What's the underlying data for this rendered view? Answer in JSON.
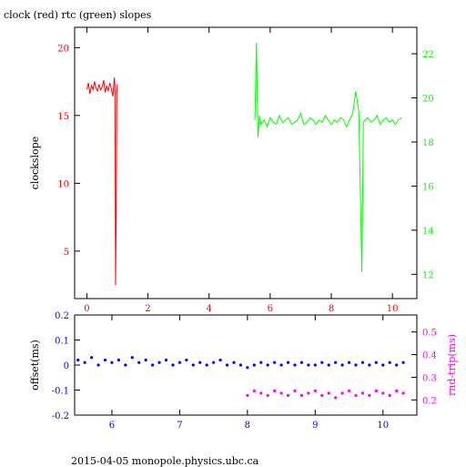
{
  "title": "clock (red) rtc (green) slopes",
  "footer": "2015-04-05  monopole.physics.ubc.ca",
  "colors": {
    "red": "#ff0000",
    "green": "#00ff00",
    "blue": "#0000ff",
    "magenta": "#ff00ff",
    "axis": "#000000"
  },
  "chart_data": [
    {
      "type": "line",
      "ylabel": "clockslope",
      "y2label": "",
      "xlim": [
        -0.4,
        10.8
      ],
      "ylim": [
        1.5,
        21.5
      ],
      "y2lim": [
        10.9,
        23.2
      ],
      "xticks": [
        0,
        2,
        4,
        6,
        8,
        10
      ],
      "yticks": [
        5,
        10,
        15,
        20
      ],
      "y2ticks": [
        12,
        14,
        16,
        18,
        20,
        22
      ],
      "series": [
        {
          "axis": "left",
          "color": "red",
          "x": [
            0.0,
            0.05,
            0.1,
            0.15,
            0.2,
            0.25,
            0.3,
            0.35,
            0.4,
            0.45,
            0.5,
            0.55,
            0.6,
            0.65,
            0.7,
            0.75,
            0.8,
            0.85,
            0.9,
            0.92,
            0.94,
            0.96,
            0.98,
            1.0
          ],
          "y": [
            16.9,
            17.4,
            16.6,
            17.2,
            16.9,
            17.5,
            17.0,
            16.8,
            17.3,
            16.9,
            17.1,
            17.6,
            16.7,
            17.2,
            16.8,
            17.4,
            17.0,
            16.4,
            17.8,
            17.2,
            2.5,
            7.5,
            16.8,
            17.3
          ]
        },
        {
          "axis": "right",
          "color": "green",
          "x": [
            5.5,
            5.55,
            5.6,
            5.65,
            5.7,
            5.8,
            5.9,
            6.0,
            6.1,
            6.2,
            6.3,
            6.4,
            6.5,
            6.6,
            6.7,
            6.8,
            6.9,
            7.0,
            7.1,
            7.2,
            7.3,
            7.4,
            7.5,
            7.6,
            7.7,
            7.8,
            7.9,
            8.0,
            8.1,
            8.2,
            8.3,
            8.4,
            8.5,
            8.6,
            8.7,
            8.8,
            8.9,
            9.0,
            9.05,
            9.1,
            9.2,
            9.3,
            9.4,
            9.5,
            9.6,
            9.7,
            9.8,
            9.9,
            10.0,
            10.1,
            10.2,
            10.3
          ],
          "y": [
            19.0,
            22.5,
            18.2,
            19.2,
            18.8,
            19.0,
            18.7,
            19.1,
            18.9,
            18.8,
            19.2,
            18.9,
            19.0,
            19.1,
            18.8,
            18.9,
            19.0,
            19.3,
            18.8,
            18.9,
            19.1,
            19.0,
            18.8,
            19.0,
            18.9,
            19.2,
            19.0,
            18.8,
            19.0,
            18.9,
            19.1,
            19.0,
            18.7,
            19.0,
            19.3,
            20.3,
            19.4,
            12.1,
            18.9,
            19.0,
            19.1,
            18.9,
            19.0,
            19.2,
            18.8,
            19.0,
            19.1,
            18.9,
            19.0,
            18.8,
            19.0,
            19.1
          ]
        }
      ]
    },
    {
      "type": "scatter",
      "ylabel": "offset(ms)",
      "y2label": "rnd-trip(ms)",
      "xlim": [
        5.45,
        10.5
      ],
      "ylim": [
        -0.2,
        0.2
      ],
      "y2lim": [
        0.133,
        0.575
      ],
      "xticks": [
        6,
        7,
        8,
        9,
        10
      ],
      "yticks": [
        -0.2,
        -0.1,
        0,
        0.1,
        0.2
      ],
      "y2ticks": [
        0.2,
        0.3,
        0.4,
        0.5
      ],
      "series": [
        {
          "axis": "left",
          "color": "blue",
          "x": [
            5.5,
            5.6,
            5.7,
            5.8,
            5.9,
            6.0,
            6.1,
            6.2,
            6.3,
            6.4,
            6.5,
            6.6,
            6.7,
            6.8,
            6.9,
            7.0,
            7.1,
            7.2,
            7.3,
            7.4,
            7.5,
            7.6,
            7.7,
            7.8,
            7.9,
            8.0,
            8.1,
            8.2,
            8.3,
            8.4,
            8.5,
            8.6,
            8.7,
            8.8,
            8.9,
            9.0,
            9.1,
            9.2,
            9.3,
            9.4,
            9.5,
            9.6,
            9.7,
            9.8,
            9.9,
            10.0,
            10.1,
            10.2,
            10.3
          ],
          "y": [
            0.02,
            0.01,
            0.03,
            0.0,
            0.02,
            0.01,
            0.02,
            0.0,
            0.03,
            0.01,
            0.02,
            0.0,
            0.01,
            0.02,
            0.0,
            0.01,
            0.02,
            0.0,
            0.01,
            0.0,
            0.01,
            0.02,
            0.0,
            0.01,
            0.0,
            -0.01,
            0.0,
            0.01,
            0.0,
            0.01,
            0.0,
            0.01,
            0.0,
            0.01,
            0.0,
            0.0,
            0.01,
            0.0,
            0.01,
            0.0,
            0.01,
            0.0,
            0.01,
            0.0,
            0.01,
            0.0,
            0.01,
            0.0,
            0.01
          ]
        },
        {
          "axis": "right",
          "color": "magenta",
          "x": [
            8.0,
            8.1,
            8.2,
            8.3,
            8.4,
            8.5,
            8.6,
            8.7,
            8.8,
            8.9,
            9.0,
            9.1,
            9.2,
            9.3,
            9.4,
            9.5,
            9.6,
            9.7,
            9.8,
            9.9,
            10.0,
            10.1,
            10.2,
            10.3
          ],
          "y": [
            0.22,
            0.24,
            0.23,
            0.22,
            0.24,
            0.23,
            0.22,
            0.24,
            0.22,
            0.23,
            0.24,
            0.22,
            0.23,
            0.21,
            0.23,
            0.24,
            0.22,
            0.23,
            0.22,
            0.24,
            0.23,
            0.22,
            0.24,
            0.23
          ]
        }
      ]
    }
  ]
}
